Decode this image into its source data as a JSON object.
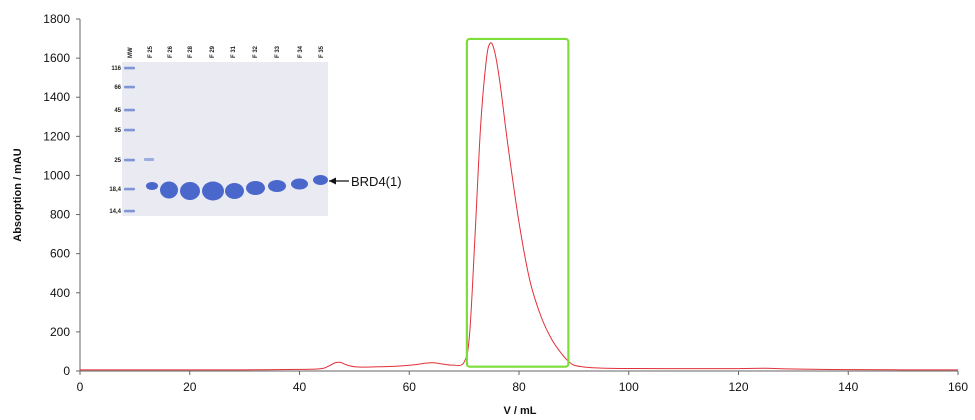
{
  "chart_data": {
    "type": "line",
    "xlabel": "V / mL",
    "ylabel": "Absorption / mAU",
    "xlim": [
      0,
      160
    ],
    "ylim": [
      0,
      1800
    ],
    "xticks": [
      0,
      20,
      40,
      60,
      80,
      100,
      120,
      140,
      160
    ],
    "yticks": [
      0,
      200,
      400,
      600,
      800,
      1000,
      1200,
      1400,
      1600,
      1800
    ],
    "grid": false,
    "colors": {
      "line": "#e0303a",
      "highlight": "#7ddd3a",
      "band": "#3c5cc8"
    },
    "series": [
      {
        "x": [
          0,
          20,
          30,
          40,
          44,
          45.5,
          46.5,
          47.5,
          48.5,
          50,
          52,
          55,
          58,
          61,
          63,
          64.5,
          66,
          68,
          70,
          71,
          72,
          73,
          74,
          74.7,
          75.5,
          76.5,
          78,
          80,
          82,
          84,
          86,
          88,
          89,
          90,
          92,
          95,
          100,
          110,
          120,
          125,
          130,
          140,
          150,
          160
        ],
        "values": [
          6,
          6,
          6,
          8,
          12,
          28,
          42,
          44,
          32,
          22,
          20,
          22,
          25,
          32,
          40,
          42,
          36,
          30,
          45,
          190,
          700,
          1250,
          1580,
          1675,
          1640,
          1480,
          1150,
          760,
          460,
          280,
          160,
          80,
          50,
          30,
          20,
          15,
          13,
          12,
          12,
          14,
          10,
          7,
          6,
          6
        ]
      }
    ],
    "highlight_box": {
      "x_range": [
        70.5,
        89
      ],
      "y_range": [
        22,
        1698
      ]
    },
    "gel_inset": {
      "lanes": [
        "MW",
        "F 25",
        "F 26",
        "F 28",
        "F 29",
        "F 31",
        "F 32",
        "F 33",
        "F 34",
        "F 35"
      ],
      "mw_markers": [
        "116",
        "66",
        "45",
        "35",
        "25",
        "18,4",
        "14,4"
      ],
      "annotation": "BRD4(1)"
    }
  }
}
